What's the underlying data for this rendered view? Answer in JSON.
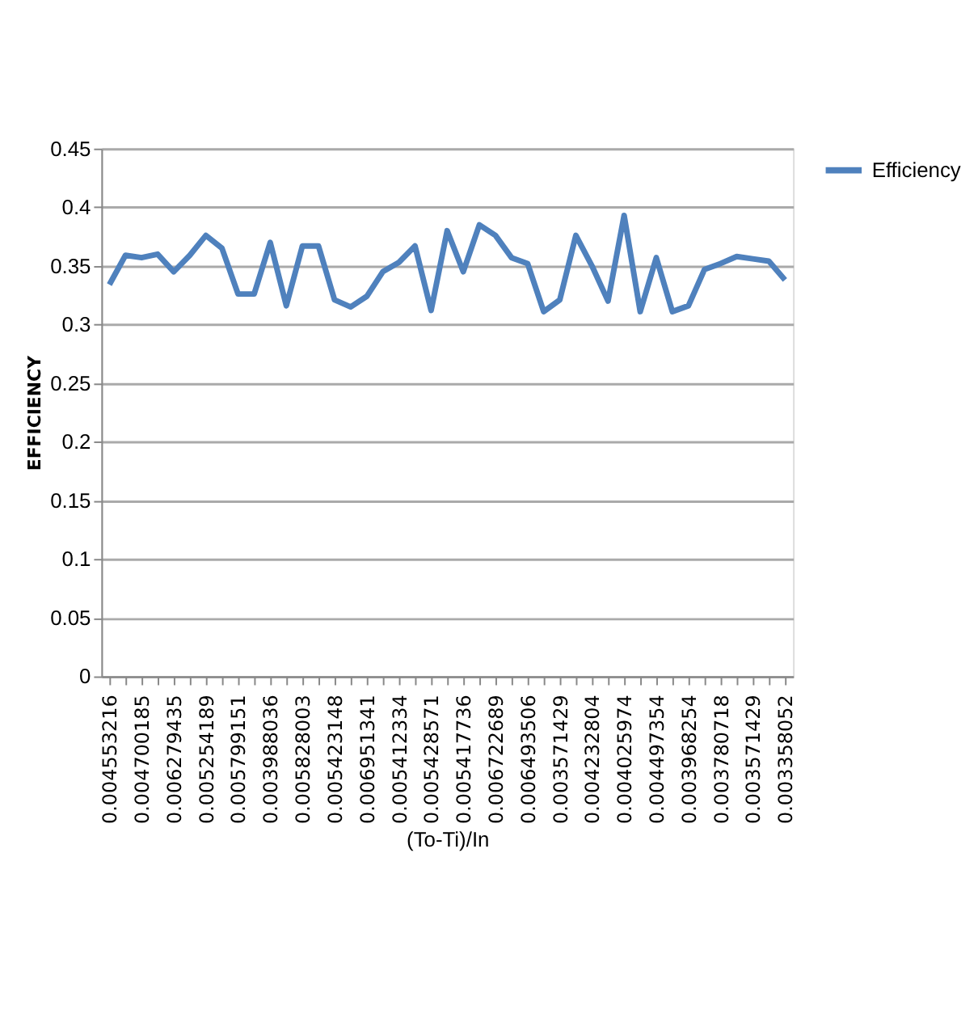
{
  "chart_data": {
    "type": "line",
    "xlabel": "(To-Ti)/In",
    "ylabel": "EFFICIENCY",
    "categories": [
      "0.004553216",
      null,
      "0.004700185",
      null,
      "0.006279435",
      null,
      "0.005254189",
      null,
      "0.005799151",
      null,
      "0.003988036",
      null,
      "0.005828003",
      null,
      "0.005423148",
      null,
      "0.006951341",
      null,
      "0.005412334",
      null,
      "0.005428571",
      null,
      "0.005417736",
      null,
      "0.006722689",
      null,
      "0.006493506",
      null,
      "0.003571429",
      null,
      "0.004232804",
      null,
      "0.004025974",
      null,
      "0.004497354",
      null,
      "0.003968254",
      null,
      "0.003780718",
      null,
      "0.003571429",
      null,
      "0.003358052"
    ],
    "series": [
      {
        "name": "Efficiency",
        "color": "#4f81bd",
        "values": [
          0.334,
          0.359,
          0.357,
          0.36,
          0.345,
          0.359,
          0.376,
          0.365,
          0.326,
          0.326,
          0.37,
          0.316,
          0.367,
          0.367,
          0.321,
          0.315,
          0.324,
          0.345,
          0.353,
          0.367,
          0.312,
          0.38,
          0.345,
          0.385,
          0.376,
          0.357,
          0.352,
          0.311,
          0.321,
          0.376,
          0.35,
          0.32,
          0.393,
          0.311,
          0.357,
          0.311,
          0.316,
          0.347,
          0.352,
          0.358,
          0.356,
          0.354,
          0.338
        ]
      }
    ],
    "ylim": [
      0,
      0.45
    ],
    "yticks": [
      0,
      0.05,
      0.1,
      0.15,
      0.2,
      0.25,
      0.3,
      0.35,
      0.4,
      0.45
    ],
    "grid": "y",
    "legend": "right",
    "marker": "none",
    "line_style": "solid"
  }
}
